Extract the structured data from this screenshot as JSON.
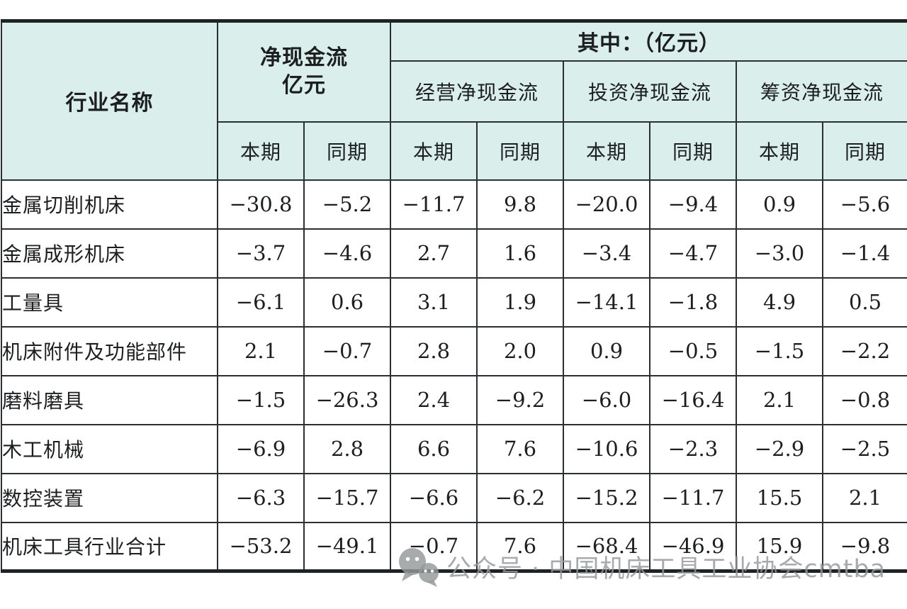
{
  "page": {
    "watermark": {
      "icon": "wechat-bubbles-icon",
      "text": "公众号 · 中国机床工具工业协会cmtba"
    }
  },
  "chart_data": {
    "type": "table",
    "title": "",
    "layout": {
      "header_bg": "#daeeec",
      "body_bg": "#ffffff",
      "border_color": "#1e2326",
      "watermark_color": "#999d9d"
    },
    "header": {
      "industry": "行业名称",
      "net_cash_flow": "净现金流\n亿元",
      "among_which": "其中：（亿元）",
      "subgroups": [
        "经营净现金流",
        "投资净现金流",
        "筹资净现金流"
      ],
      "period_current": "本期",
      "period_prior": "同期"
    },
    "rows": [
      {
        "label": "金属切削机床",
        "values": [
          -30.8,
          -5.2,
          -11.7,
          9.8,
          -20.0,
          -9.4,
          0.9,
          -5.6
        ]
      },
      {
        "label": "金属成形机床",
        "values": [
          -3.7,
          -4.6,
          2.7,
          1.6,
          -3.4,
          -4.7,
          -3.0,
          -1.4
        ]
      },
      {
        "label": "工量具",
        "values": [
          -6.1,
          0.6,
          3.1,
          1.9,
          -14.1,
          -1.8,
          4.9,
          0.5
        ]
      },
      {
        "label": "机床附件及功能部件",
        "values": [
          2.1,
          -0.7,
          2.8,
          2.0,
          0.9,
          -0.5,
          -1.5,
          -2.2
        ]
      },
      {
        "label": "磨料磨具",
        "values": [
          -1.5,
          -26.3,
          2.4,
          -9.2,
          -6.0,
          -16.4,
          2.1,
          -0.8
        ]
      },
      {
        "label": "木工机械",
        "values": [
          -6.9,
          2.8,
          6.6,
          7.6,
          -10.6,
          -2.3,
          -2.9,
          -2.5
        ]
      },
      {
        "label": "数控装置",
        "values": [
          -6.3,
          -15.7,
          -6.6,
          -6.2,
          -15.2,
          -11.7,
          15.5,
          2.1
        ]
      },
      {
        "label": "机床工具行业合计",
        "values": [
          -53.2,
          -49.1,
          -0.7,
          7.6,
          -68.4,
          -46.9,
          15.9,
          -9.8
        ]
      }
    ]
  }
}
